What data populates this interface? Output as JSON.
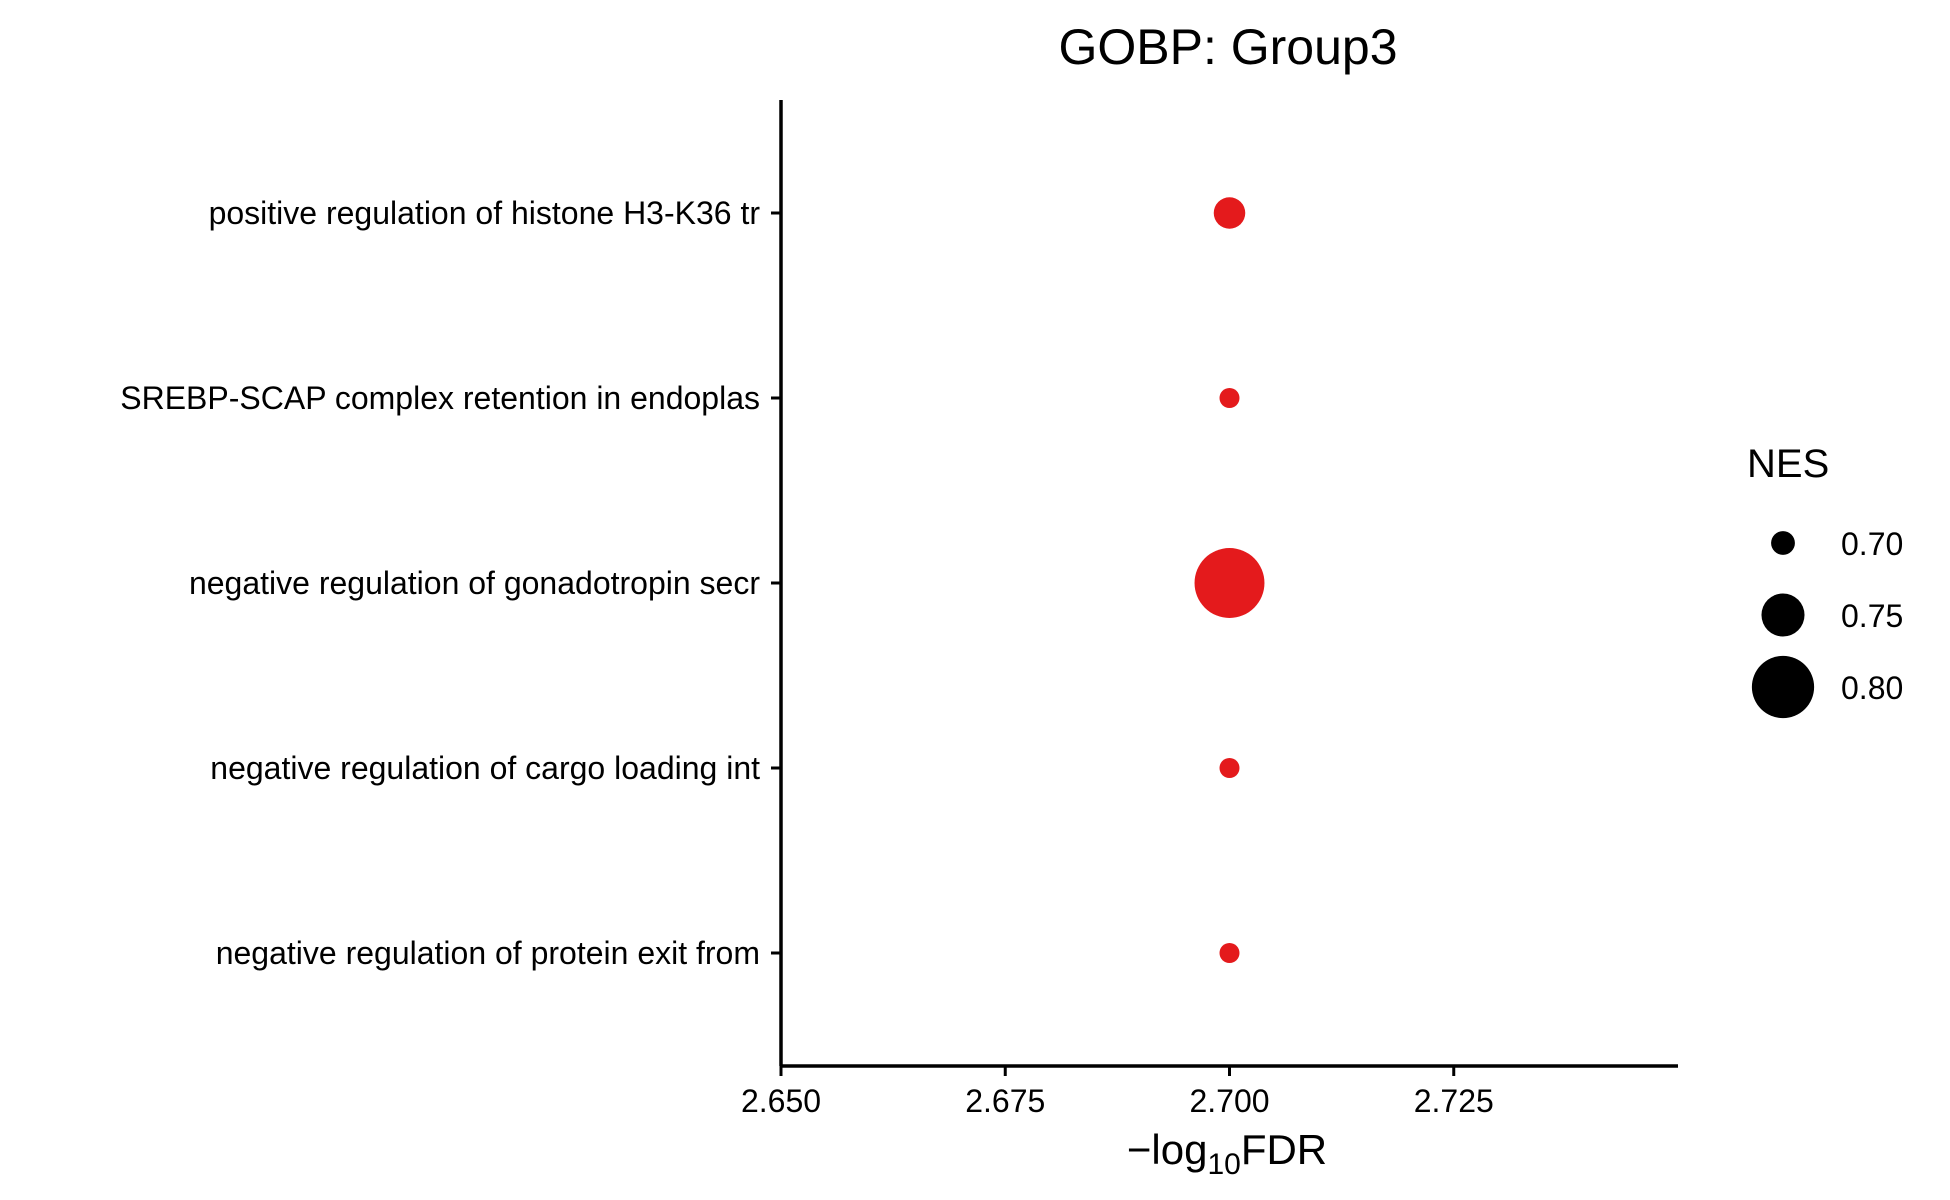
{
  "chart_data": {
    "type": "scatter",
    "title": "GOBP: Group3",
    "xlabel": {
      "prefix": "−log",
      "subscript": "10",
      "suffix": "FDR"
    },
    "ylabel": "",
    "xlim": [
      2.65,
      2.75
    ],
    "xticks": [
      {
        "value": 2.65,
        "label": "2.650"
      },
      {
        "value": 2.675,
        "label": "2.675"
      },
      {
        "value": 2.7,
        "label": "2.700"
      },
      {
        "value": 2.725,
        "label": "2.725"
      }
    ],
    "categories": [
      "positive regulation of histone H3-K36 tr",
      "SREBP-SCAP complex retention in endoplas",
      "negative regulation of gonadotropin secr",
      "negative regulation of cargo loading int",
      "negative regulation of protein exit from"
    ],
    "points": [
      {
        "category": "positive regulation of histone H3-K36 tr",
        "x": 2.7,
        "nes": 0.72
      },
      {
        "category": "SREBP-SCAP complex retention in endoplas",
        "x": 2.7,
        "nes": 0.69
      },
      {
        "category": "negative regulation of gonadotropin secr",
        "x": 2.7,
        "nes": 0.82
      },
      {
        "category": "negative regulation of cargo loading int",
        "x": 2.7,
        "nes": 0.69
      },
      {
        "category": "negative regulation of protein exit from",
        "x": 2.7,
        "nes": 0.69
      }
    ],
    "point_color": "#E41A1C",
    "size_legend": {
      "title": "NES",
      "color": "#000000",
      "entries": [
        {
          "value": 0.7,
          "label": "0.70"
        },
        {
          "value": 0.75,
          "label": "0.75"
        },
        {
          "value": 0.8,
          "label": "0.80"
        }
      ]
    },
    "grid": false,
    "legend_position": "right"
  }
}
